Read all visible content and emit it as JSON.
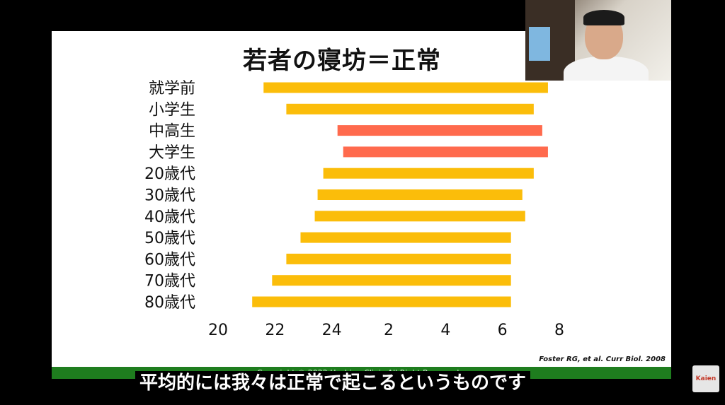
{
  "slide": {
    "title": "若者の寝坊＝正常",
    "citation": "Foster RG, et al. Curr Biol. 2008",
    "copyright": "Copyright © 2022 Hoshino Clinic All Right Reserved"
  },
  "subtitle": "平均的には我々は正常で起こるというものです",
  "logo_text": "Kaien",
  "colors": {
    "bar": "#fbbd0a",
    "highlight": "#ff6a4d",
    "footer": "#1e7d1e"
  },
  "chart_data": {
    "type": "bar",
    "orientation": "horizontal-range",
    "title": "若者の寝坊＝正常",
    "categories": [
      "就学前",
      "小学生",
      "中高生",
      "大学生",
      "20歳代",
      "30歳代",
      "40歳代",
      "50歳代",
      "60歳代",
      "70歳代",
      "80歳代"
    ],
    "x_tick_labels": [
      "20",
      "22",
      "24",
      "2",
      "4",
      "6",
      "8"
    ],
    "x_range_hours": [
      20,
      32
    ],
    "series": [
      {
        "start_hour": [
          21.6,
          22.4,
          24.2,
          24.4,
          23.7,
          23.5,
          23.4,
          22.9,
          22.4,
          21.9,
          21.2
        ],
        "end_hour": [
          31.6,
          31.1,
          31.4,
          31.6,
          31.1,
          30.7,
          30.8,
          30.3,
          30.3,
          30.3,
          30.3
        ],
        "highlight": [
          false,
          false,
          true,
          true,
          false,
          false,
          false,
          false,
          false,
          false,
          false
        ]
      }
    ],
    "grid": false,
    "legend": "none"
  }
}
